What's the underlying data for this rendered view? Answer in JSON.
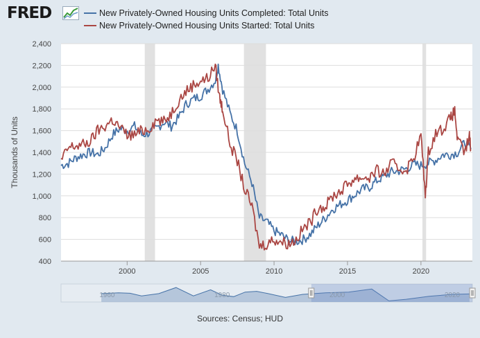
{
  "logo": {
    "text": "FRED"
  },
  "source": "Sources: Census; HUD",
  "chart_data": {
    "type": "line",
    "ylabel": "Thousands of Units",
    "xlabel": "",
    "xlim": [
      1995.5,
      2023.5
    ],
    "ylim": [
      400,
      2400
    ],
    "y_ticks": [
      400,
      600,
      800,
      1000,
      1200,
      1400,
      1600,
      1800,
      2000,
      2200,
      2400
    ],
    "y_tick_labels": [
      "400",
      "600",
      "800",
      "1,000",
      "1,200",
      "1,400",
      "1,600",
      "1,800",
      "2,000",
      "2,200",
      "2,400"
    ],
    "x_ticks": [
      2000,
      2005,
      2010,
      2015,
      2020
    ],
    "x_tick_labels": [
      "2000",
      "2005",
      "2010",
      "2015",
      "2020"
    ],
    "grid": "horizontal",
    "legend": "top-left",
    "recessions": [
      [
        2001.2,
        2001.9
      ],
      [
        2007.95,
        2009.45
      ],
      [
        2020.1,
        2020.35
      ]
    ],
    "navigator": {
      "labels": [
        {
          "x": 1960,
          "text": "1960"
        },
        {
          "x": 1980,
          "text": "1980"
        },
        {
          "x": 2000,
          "text": "2000"
        },
        {
          "x": 2020,
          "text": "2020"
        }
      ],
      "selection_start": 1995.5,
      "selection_end": 2023.5
    },
    "series": [
      {
        "name": "New Privately-Owned Housing Units Completed: Total Units",
        "color": "#4572a7",
        "points": [
          [
            1995.5,
            1280
          ],
          [
            1996.0,
            1300
          ],
          [
            1996.5,
            1350
          ],
          [
            1997.0,
            1380
          ],
          [
            1997.5,
            1400
          ],
          [
            1998.0,
            1380
          ],
          [
            1998.5,
            1440
          ],
          [
            1999.0,
            1560
          ],
          [
            1999.5,
            1620
          ],
          [
            2000.0,
            1600
          ],
          [
            2000.5,
            1640
          ],
          [
            2001.0,
            1560
          ],
          [
            2001.5,
            1580
          ],
          [
            2002.0,
            1620
          ],
          [
            2002.5,
            1680
          ],
          [
            2003.0,
            1640
          ],
          [
            2003.5,
            1720
          ],
          [
            2004.0,
            1840
          ],
          [
            2004.5,
            1890
          ],
          [
            2005.0,
            1920
          ],
          [
            2005.5,
            1980
          ],
          [
            2006.0,
            2060
          ],
          [
            2006.2,
            2200
          ],
          [
            2006.5,
            1980
          ],
          [
            2007.0,
            1760
          ],
          [
            2007.5,
            1600
          ],
          [
            2008.0,
            1300
          ],
          [
            2008.5,
            1120
          ],
          [
            2009.0,
            800
          ],
          [
            2009.5,
            760
          ],
          [
            2010.0,
            680
          ],
          [
            2010.5,
            640
          ],
          [
            2011.0,
            590
          ],
          [
            2011.5,
            580
          ],
          [
            2012.0,
            600
          ],
          [
            2012.5,
            650
          ],
          [
            2013.0,
            730
          ],
          [
            2013.5,
            800
          ],
          [
            2014.0,
            880
          ],
          [
            2014.5,
            920
          ],
          [
            2015.0,
            960
          ],
          [
            2015.5,
            1010
          ],
          [
            2016.0,
            1060
          ],
          [
            2016.5,
            1080
          ],
          [
            2017.0,
            1140
          ],
          [
            2017.5,
            1180
          ],
          [
            2018.0,
            1220
          ],
          [
            2018.5,
            1230
          ],
          [
            2019.0,
            1250
          ],
          [
            2019.5,
            1290
          ],
          [
            2020.0,
            1280
          ],
          [
            2020.5,
            1300
          ],
          [
            2021.0,
            1330
          ],
          [
            2021.5,
            1380
          ],
          [
            2022.0,
            1380
          ],
          [
            2022.5,
            1400
          ],
          [
            2023.0,
            1490
          ],
          [
            2023.4,
            1430
          ]
        ]
      },
      {
        "name": "New Privately-Owned Housing Units Started: Total Units",
        "color": "#aa4643",
        "points": [
          [
            1995.5,
            1320
          ],
          [
            1996.0,
            1440
          ],
          [
            1996.5,
            1460
          ],
          [
            1997.0,
            1470
          ],
          [
            1997.5,
            1500
          ],
          [
            1998.0,
            1600
          ],
          [
            1998.5,
            1640
          ],
          [
            1999.0,
            1700
          ],
          [
            1999.5,
            1630
          ],
          [
            2000.0,
            1560
          ],
          [
            2000.5,
            1560
          ],
          [
            2001.0,
            1600
          ],
          [
            2001.5,
            1620
          ],
          [
            2002.0,
            1700
          ],
          [
            2002.5,
            1680
          ],
          [
            2003.0,
            1760
          ],
          [
            2003.5,
            1880
          ],
          [
            2004.0,
            1960
          ],
          [
            2004.5,
            2020
          ],
          [
            2005.0,
            2060
          ],
          [
            2005.5,
            2080
          ],
          [
            2006.0,
            2200
          ],
          [
            2006.3,
            1900
          ],
          [
            2006.5,
            1800
          ],
          [
            2007.0,
            1480
          ],
          [
            2007.5,
            1320
          ],
          [
            2008.0,
            1060
          ],
          [
            2008.5,
            900
          ],
          [
            2009.0,
            540
          ],
          [
            2009.5,
            560
          ],
          [
            2010.0,
            600
          ],
          [
            2010.5,
            580
          ],
          [
            2011.0,
            560
          ],
          [
            2011.5,
            600
          ],
          [
            2012.0,
            700
          ],
          [
            2012.5,
            760
          ],
          [
            2013.0,
            900
          ],
          [
            2013.5,
            900
          ],
          [
            2014.0,
            1000
          ],
          [
            2014.5,
            1040
          ],
          [
            2015.0,
            1110
          ],
          [
            2015.5,
            1160
          ],
          [
            2016.0,
            1170
          ],
          [
            2016.5,
            1170
          ],
          [
            2017.0,
            1230
          ],
          [
            2017.5,
            1200
          ],
          [
            2018.0,
            1300
          ],
          [
            2018.5,
            1250
          ],
          [
            2019.0,
            1240
          ],
          [
            2019.5,
            1350
          ],
          [
            2020.0,
            1560
          ],
          [
            2020.3,
            1000
          ],
          [
            2020.5,
            1400
          ],
          [
            2021.0,
            1580
          ],
          [
            2021.5,
            1620
          ],
          [
            2022.0,
            1710
          ],
          [
            2022.3,
            1780
          ],
          [
            2022.5,
            1500
          ],
          [
            2023.0,
            1400
          ],
          [
            2023.3,
            1550
          ],
          [
            2023.4,
            1420
          ]
        ]
      }
    ]
  }
}
